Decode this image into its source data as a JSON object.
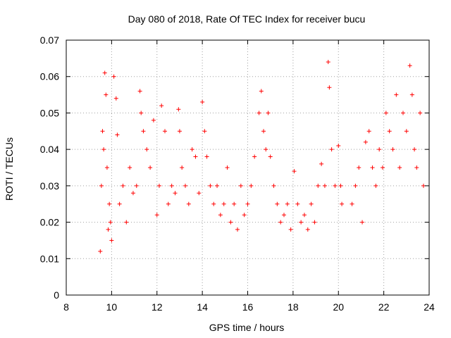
{
  "chart_data": {
    "type": "scatter",
    "title": "Day 080 of 2018, Rate Of TEC Index for receiver bucu",
    "xlabel": "GPS time / hours",
    "ylabel": "ROTI / TECUs",
    "xlim": [
      8,
      24
    ],
    "ylim": [
      0,
      0.07
    ],
    "x_ticks": [
      8,
      10,
      12,
      14,
      16,
      18,
      20,
      22,
      24
    ],
    "y_ticks": [
      0,
      0.01,
      0.02,
      0.03,
      0.04,
      0.05,
      0.06,
      0.07
    ],
    "x_tick_labels": [
      "8",
      "10",
      "12",
      "14",
      "16",
      "18",
      "20",
      "22",
      "24"
    ],
    "y_tick_labels": [
      "0",
      "0.01",
      "0.02",
      "0.03",
      "0.04",
      "0.05",
      "0.06",
      "0.07"
    ],
    "grid": true,
    "legend": "none",
    "marker": "+",
    "color": "#ff0000",
    "series": [
      {
        "x": [
          9.5,
          9.55,
          9.6,
          9.65,
          9.7,
          9.75,
          9.8,
          9.85,
          9.9,
          9.95,
          10.0,
          10.1,
          10.2,
          10.25,
          10.35,
          10.5,
          10.65,
          10.8,
          10.95,
          11.1,
          11.25,
          11.3,
          11.4,
          11.55,
          11.7,
          11.85,
          12.0,
          12.1,
          12.2,
          12.35,
          12.5,
          12.65,
          12.8,
          12.95,
          13.0,
          13.1,
          13.25,
          13.4,
          13.55,
          13.7,
          13.85,
          14.0,
          14.1,
          14.2,
          14.35,
          14.5,
          14.65,
          14.8,
          14.95,
          15.1,
          15.25,
          15.4,
          15.55,
          15.7,
          15.85,
          16.0,
          16.15,
          16.3,
          16.5,
          16.6,
          16.7,
          16.8,
          16.9,
          17.0,
          17.15,
          17.3,
          17.45,
          17.6,
          17.75,
          17.9,
          18.05,
          18.2,
          18.35,
          18.5,
          18.65,
          18.8,
          18.95,
          19.1,
          19.25,
          19.4,
          19.55,
          19.6,
          19.7,
          19.85,
          20.0,
          20.1,
          20.15,
          20.6,
          20.75,
          20.9,
          21.05,
          21.2,
          21.35,
          21.5,
          21.65,
          21.8,
          21.95,
          22.1,
          22.25,
          22.4,
          22.55,
          22.7,
          22.85,
          23.0,
          23.15,
          23.25,
          23.35,
          23.45,
          23.6,
          23.75
        ],
        "y": [
          0.012,
          0.03,
          0.045,
          0.04,
          0.061,
          0.055,
          0.035,
          0.018,
          0.025,
          0.02,
          0.015,
          0.06,
          0.054,
          0.044,
          0.025,
          0.03,
          0.02,
          0.035,
          0.028,
          0.03,
          0.056,
          0.05,
          0.045,
          0.04,
          0.035,
          0.048,
          0.022,
          0.03,
          0.052,
          0.045,
          0.025,
          0.03,
          0.028,
          0.051,
          0.045,
          0.035,
          0.03,
          0.025,
          0.04,
          0.038,
          0.028,
          0.053,
          0.045,
          0.038,
          0.03,
          0.025,
          0.03,
          0.022,
          0.025,
          0.035,
          0.02,
          0.025,
          0.018,
          0.03,
          0.022,
          0.025,
          0.03,
          0.038,
          0.05,
          0.056,
          0.045,
          0.04,
          0.05,
          0.038,
          0.03,
          0.025,
          0.02,
          0.022,
          0.025,
          0.018,
          0.034,
          0.025,
          0.02,
          0.022,
          0.018,
          0.025,
          0.02,
          0.03,
          0.036,
          0.03,
          0.064,
          0.057,
          0.04,
          0.03,
          0.041,
          0.03,
          0.025,
          0.025,
          0.03,
          0.035,
          0.02,
          0.042,
          0.045,
          0.035,
          0.03,
          0.04,
          0.035,
          0.05,
          0.045,
          0.04,
          0.055,
          0.035,
          0.05,
          0.045,
          0.063,
          0.055,
          0.04,
          0.035,
          0.05,
          0.03
        ]
      }
    ]
  }
}
